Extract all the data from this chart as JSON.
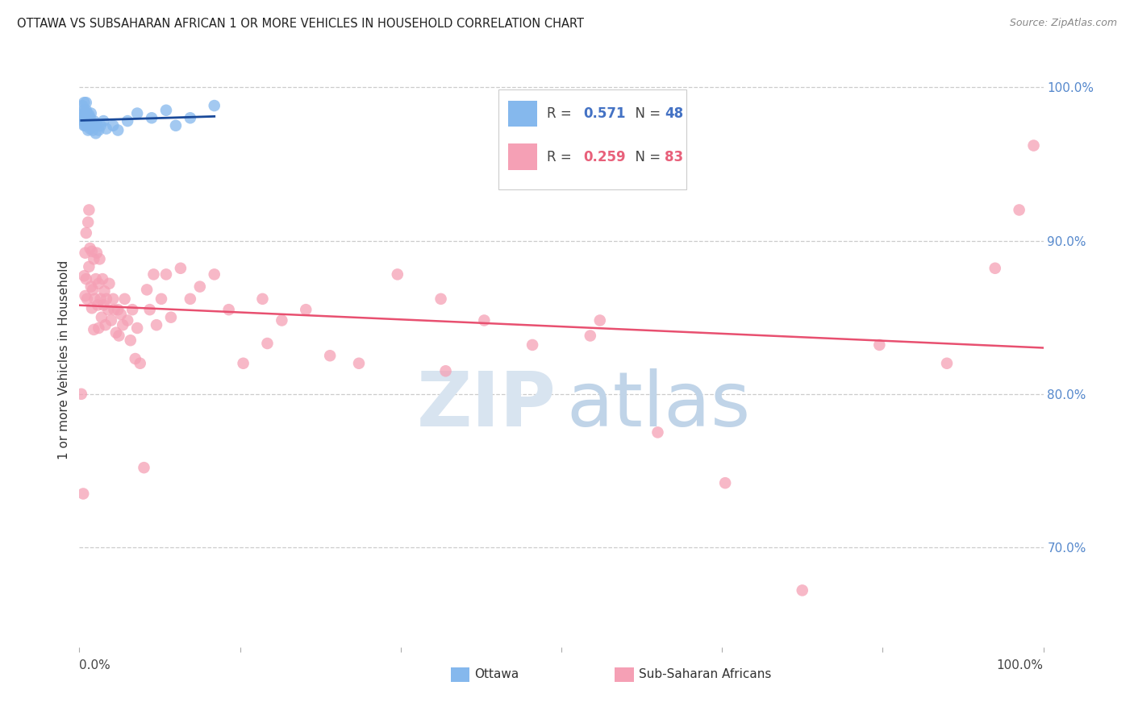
{
  "title": "OTTAWA VS SUBSAHARAN AFRICAN 1 OR MORE VEHICLES IN HOUSEHOLD CORRELATION CHART",
  "source": "Source: ZipAtlas.com",
  "ylabel": "1 or more Vehicles in Household",
  "ytick_labels": [
    "100.0%",
    "90.0%",
    "80.0%",
    "70.0%"
  ],
  "ytick_positions": [
    1.0,
    0.9,
    0.8,
    0.7
  ],
  "ottawa_color": "#85B8ED",
  "ssa_color": "#F5A0B5",
  "ottawa_line_color": "#1A4A9A",
  "ssa_line_color": "#E85070",
  "background_color": "#FFFFFF",
  "legend_r1": "0.571",
  "legend_n1": "48",
  "legend_r2": "0.259",
  "legend_n2": "83",
  "legend_color1": "#4472C4",
  "legend_color2": "#E8607A",
  "watermark_zip_color": "#D8E4F0",
  "watermark_atlas_color": "#C0D4E8",
  "xlim": [
    0.0,
    1.0
  ],
  "ylim": [
    0.635,
    1.01
  ],
  "ottawa_x": [
    0.002,
    0.003,
    0.003,
    0.004,
    0.005,
    0.005,
    0.005,
    0.005,
    0.006,
    0.006,
    0.006,
    0.007,
    0.007,
    0.007,
    0.007,
    0.007,
    0.008,
    0.008,
    0.008,
    0.009,
    0.009,
    0.009,
    0.01,
    0.01,
    0.01,
    0.011,
    0.011,
    0.012,
    0.012,
    0.013,
    0.014,
    0.015,
    0.016,
    0.017,
    0.018,
    0.02,
    0.022,
    0.025,
    0.028,
    0.035,
    0.04,
    0.05,
    0.06,
    0.075,
    0.09,
    0.1,
    0.115,
    0.14
  ],
  "ottawa_y": [
    0.98,
    0.982,
    0.988,
    0.978,
    0.985,
    0.99,
    0.975,
    0.98,
    0.978,
    0.983,
    0.975,
    0.982,
    0.978,
    0.985,
    0.99,
    0.975,
    0.976,
    0.98,
    0.983,
    0.978,
    0.972,
    0.98,
    0.975,
    0.982,
    0.978,
    0.973,
    0.98,
    0.976,
    0.983,
    0.975,
    0.972,
    0.978,
    0.975,
    0.97,
    0.976,
    0.972,
    0.975,
    0.978,
    0.973,
    0.975,
    0.972,
    0.978,
    0.983,
    0.98,
    0.985,
    0.975,
    0.98,
    0.988
  ],
  "ssa_x": [
    0.002,
    0.004,
    0.005,
    0.006,
    0.006,
    0.007,
    0.007,
    0.008,
    0.009,
    0.01,
    0.01,
    0.011,
    0.012,
    0.013,
    0.013,
    0.014,
    0.015,
    0.015,
    0.016,
    0.017,
    0.018,
    0.019,
    0.02,
    0.02,
    0.021,
    0.022,
    0.023,
    0.024,
    0.025,
    0.026,
    0.027,
    0.028,
    0.03,
    0.031,
    0.033,
    0.035,
    0.036,
    0.038,
    0.04,
    0.041,
    0.043,
    0.045,
    0.047,
    0.05,
    0.053,
    0.055,
    0.058,
    0.06,
    0.063,
    0.067,
    0.07,
    0.073,
    0.077,
    0.08,
    0.085,
    0.09,
    0.095,
    0.105,
    0.115,
    0.125,
    0.14,
    0.155,
    0.17,
    0.19,
    0.21,
    0.235,
    0.26,
    0.29,
    0.33,
    0.375,
    0.42,
    0.47,
    0.53,
    0.6,
    0.67,
    0.75,
    0.83,
    0.9,
    0.95,
    0.975,
    0.99,
    0.195,
    0.38,
    0.54
  ],
  "ssa_y": [
    0.8,
    0.735,
    0.877,
    0.864,
    0.892,
    0.905,
    0.875,
    0.862,
    0.912,
    0.883,
    0.92,
    0.895,
    0.87,
    0.856,
    0.893,
    0.868,
    0.842,
    0.888,
    0.862,
    0.875,
    0.892,
    0.858,
    0.843,
    0.872,
    0.888,
    0.862,
    0.85,
    0.875,
    0.858,
    0.867,
    0.845,
    0.862,
    0.855,
    0.872,
    0.848,
    0.862,
    0.855,
    0.84,
    0.855,
    0.838,
    0.852,
    0.845,
    0.862,
    0.848,
    0.835,
    0.855,
    0.823,
    0.843,
    0.82,
    0.752,
    0.868,
    0.855,
    0.878,
    0.845,
    0.862,
    0.878,
    0.85,
    0.882,
    0.862,
    0.87,
    0.878,
    0.855,
    0.82,
    0.862,
    0.848,
    0.855,
    0.825,
    0.82,
    0.878,
    0.862,
    0.848,
    0.832,
    0.838,
    0.775,
    0.742,
    0.672,
    0.832,
    0.82,
    0.882,
    0.92,
    0.962,
    0.833,
    0.815,
    0.848
  ]
}
